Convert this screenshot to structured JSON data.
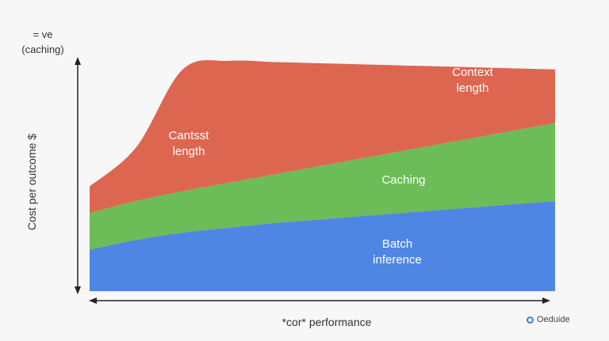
{
  "chart_data": {
    "type": "area",
    "title": "",
    "corner_label_line1": "= ve",
    "corner_label_line2": "(caching)",
    "ylabel": "Cost per outcome $",
    "xlabel": "*cor* performance",
    "x": [
      0,
      0.1,
      0.2,
      0.3,
      0.4,
      0.5,
      0.6,
      0.7,
      0.8,
      0.9,
      1.0
    ],
    "ylim": [
      0,
      100
    ],
    "grid": false,
    "series": [
      {
        "name": "Batch inference",
        "label_lines": [
          "Batch",
          "inference"
        ],
        "color": "#4f86e3",
        "values": [
          17,
          21,
          24,
          26,
          28,
          29.5,
          31,
          32.5,
          34,
          35.5,
          37
        ]
      },
      {
        "name": "Caching",
        "label_lines": [
          "Caching"
        ],
        "color": "#6cbd57",
        "values": [
          15,
          16,
          17,
          18.5,
          20,
          22,
          24,
          26,
          28,
          30,
          32
        ]
      },
      {
        "name": "Context length",
        "label_lines": [
          "Context",
          "length"
        ],
        "color": "#dd6650",
        "values": [
          11,
          22,
          50,
          50,
          46,
          42,
          38,
          34,
          30,
          26,
          22
        ]
      }
    ],
    "inline_labels": [
      {
        "lines": [
          "Cantsst",
          "length"
        ],
        "series": "Context length"
      },
      {
        "lines": [
          "Context",
          "length"
        ],
        "series": "Context length"
      },
      {
        "lines": [
          "Caching"
        ],
        "series": "Caching"
      },
      {
        "lines": [
          "Batch",
          "inference"
        ],
        "series": "Batch inference"
      }
    ]
  },
  "badge": {
    "text": "Oeduide",
    "icon": "circle-icon"
  }
}
